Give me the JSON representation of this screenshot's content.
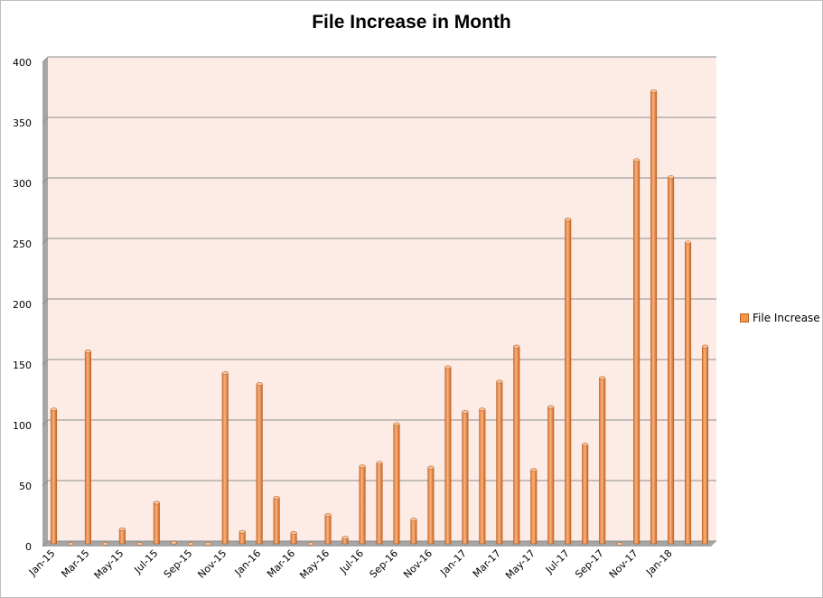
{
  "chart_data": {
    "type": "bar",
    "title": "File Increase in Month",
    "xlabel": "",
    "ylabel": "",
    "ylim": [
      0,
      400
    ],
    "yticks": [
      0,
      50,
      100,
      150,
      200,
      250,
      300,
      350,
      400
    ],
    "grid": true,
    "legend_position": "right",
    "categories": [
      "Jan-15",
      "Feb-15",
      "Mar-15",
      "Apr-15",
      "May-15",
      "Jun-15",
      "Jul-15",
      "Aug-15",
      "Sep-15",
      "Oct-15",
      "Nov-15",
      "Dec-15",
      "Jan-16",
      "Feb-16",
      "Mar-16",
      "Apr-16",
      "May-16",
      "Jun-16",
      "Jul-16",
      "Aug-16",
      "Sep-16",
      "Oct-16",
      "Nov-16",
      "Dec-16",
      "Jan-17",
      "Feb-17",
      "Mar-17",
      "Apr-17",
      "May-17",
      "Jun-17",
      "Jul-17",
      "Aug-17",
      "Sep-17",
      "Oct-17",
      "Nov-17",
      "Dec-17",
      "Jan-18",
      "Feb-18",
      "Mar-18"
    ],
    "x_tick_labels": [
      "Jan-15",
      "Mar-15",
      "May-15",
      "Jul-15",
      "Sep-15",
      "Nov-15",
      "Jan-16",
      "Mar-16",
      "May-16",
      "Jul-16",
      "Sep-16",
      "Nov-16",
      "Jan-17",
      "Mar-17",
      "May-17",
      "Jul-17",
      "Sep-17",
      "Nov-17",
      "Jan-18"
    ],
    "series": [
      {
        "name": "File Increase",
        "color": "#f79646",
        "values": [
          111,
          0,
          159,
          0,
          12,
          0,
          34,
          1,
          0,
          0,
          141,
          10,
          132,
          38,
          9,
          0,
          24,
          5,
          64,
          67,
          99,
          20,
          63,
          146,
          109,
          111,
          134,
          163,
          61,
          113,
          268,
          82,
          137,
          0,
          317,
          374,
          303,
          249,
          163
        ]
      }
    ]
  }
}
